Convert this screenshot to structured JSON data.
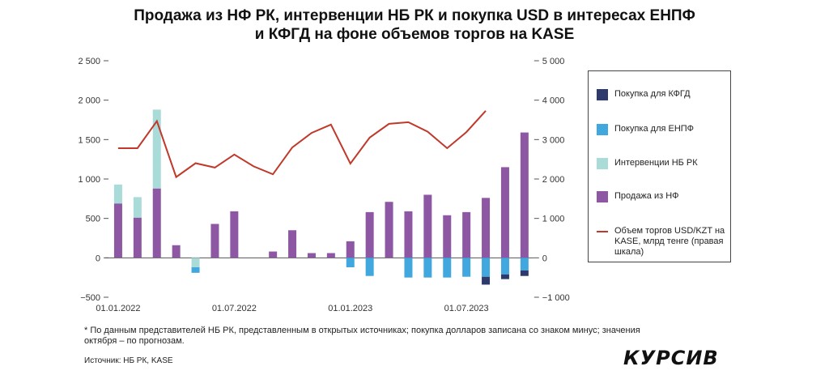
{
  "chart_data": {
    "type": "bar",
    "title_lines": [
      "Продажа из НФ РК, интервенции НБ РК и покупка USD в интересах ЕНПФ",
      "и КФГД на фоне объемов торгов на KASE"
    ],
    "categories": [
      "2022-01",
      "2022-02",
      "2022-03",
      "2022-04",
      "2022-05",
      "2022-06",
      "2022-07",
      "2022-08",
      "2022-09",
      "2022-10",
      "2022-11",
      "2022-12",
      "2023-01",
      "2023-02",
      "2023-03",
      "2023-04",
      "2023-05",
      "2023-06",
      "2023-07",
      "2023-08",
      "2023-09",
      "2023-10"
    ],
    "x_tick_labels": [
      {
        "label": "01.01.2022",
        "index": 0
      },
      {
        "label": "01.07.2022",
        "index": 6
      },
      {
        "label": "01.01.2023",
        "index": 12
      },
      {
        "label": "01.07.2023",
        "index": 18
      }
    ],
    "left_axis": {
      "ylim": [
        -500,
        2500
      ],
      "ticks": [
        -500,
        0,
        500,
        1000,
        1500,
        2000,
        2500
      ],
      "tick_labels": [
        "−500",
        "0",
        "500",
        "1 000",
        "1 500",
        "2 000",
        "2 500"
      ]
    },
    "right_axis": {
      "ylim": [
        -1000,
        5000
      ],
      "ticks": [
        -1000,
        0,
        1000,
        2000,
        3000,
        4000,
        5000
      ],
      "tick_labels": [
        "−1 000",
        "0",
        "1 000",
        "2 000",
        "3 000",
        "4 000",
        "5 000"
      ]
    },
    "series": [
      {
        "name": "Продажа из НФ",
        "axis": "left",
        "kind": "bar",
        "color": "#8e57a4",
        "values": [
          690,
          510,
          880,
          160,
          0,
          430,
          590,
          0,
          80,
          350,
          60,
          60,
          210,
          580,
          710,
          590,
          800,
          540,
          580,
          760,
          1150,
          1590
        ]
      },
      {
        "name": "Интервенции НБ РК",
        "axis": "left",
        "kind": "bar",
        "color": "#a9dcd9",
        "values": [
          240,
          260,
          1000,
          0,
          -120,
          0,
          0,
          0,
          0,
          0,
          0,
          0,
          0,
          0,
          0,
          0,
          0,
          0,
          0,
          0,
          0,
          0
        ]
      },
      {
        "name": "Покупка для ЕНПФ",
        "axis": "left",
        "kind": "bar",
        "color": "#41a7df",
        "values": [
          0,
          0,
          0,
          0,
          -70,
          0,
          0,
          0,
          0,
          0,
          0,
          0,
          -120,
          -230,
          0,
          -250,
          -250,
          -250,
          -240,
          -240,
          -210,
          -160
        ]
      },
      {
        "name": "Покупка для КФГД",
        "axis": "left",
        "kind": "bar",
        "color": "#2e3a6b",
        "values": [
          0,
          0,
          0,
          0,
          0,
          0,
          0,
          0,
          0,
          0,
          0,
          0,
          0,
          0,
          0,
          0,
          0,
          0,
          0,
          -100,
          -60,
          -70
        ]
      },
      {
        "name": "Объем торгов USD/KZT на KASE, млрд тенге (правая шкала)",
        "axis": "right",
        "kind": "line",
        "color": "#c0392b",
        "values": [
          2780,
          2780,
          3470,
          2050,
          2400,
          2290,
          2620,
          2320,
          2120,
          2800,
          3170,
          3380,
          2390,
          3050,
          3400,
          3440,
          3200,
          2780,
          3190,
          3730,
          null,
          null
        ]
      }
    ],
    "legend_order": [
      "Покупка для КФГД",
      "Покупка для ЕНПФ",
      "Интервенции НБ РК",
      "Продажа из НФ",
      "Объем торгов USD/KZT на KASE, млрд тенге (правая шкала)"
    ],
    "legend_position": "right",
    "grid": false
  },
  "legend": {
    "kfgd": "Покупка для КФГД",
    "enpf": "Покупка для ЕНПФ",
    "interv": "Интервенции НБ РК",
    "nf": "Продажа из НФ",
    "line": "Объем торгов USD/KZT на KASE, млрд тенге (правая шкала)"
  },
  "footnote": "* По данным представителей НБ РК, представленным в открытых источниках; покупка долларов записана со знаком минус; значения октября – по прогнозам.",
  "source": "Источник: НБ РК, KASE",
  "logo": "КУРСИВ",
  "colors": {
    "nf": "#8e57a4",
    "interv": "#a9dcd9",
    "enpf": "#41a7df",
    "kfgd": "#2e3a6b",
    "line": "#c0392b"
  }
}
